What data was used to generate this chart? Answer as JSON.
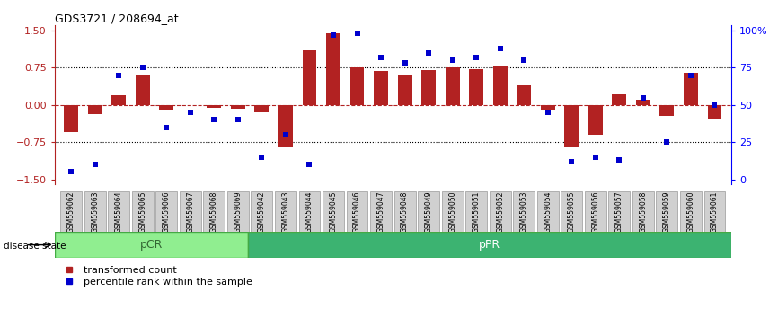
{
  "title": "GDS3721 / 208694_at",
  "samples": [
    "GSM559062",
    "GSM559063",
    "GSM559064",
    "GSM559065",
    "GSM559066",
    "GSM559067",
    "GSM559068",
    "GSM559069",
    "GSM559042",
    "GSM559043",
    "GSM559044",
    "GSM559045",
    "GSM559046",
    "GSM559047",
    "GSM559048",
    "GSM559049",
    "GSM559050",
    "GSM559051",
    "GSM559052",
    "GSM559053",
    "GSM559054",
    "GSM559055",
    "GSM559056",
    "GSM559057",
    "GSM559058",
    "GSM559059",
    "GSM559060",
    "GSM559061"
  ],
  "bar_values": [
    -0.55,
    -0.18,
    0.2,
    0.62,
    -0.12,
    0.0,
    -0.05,
    -0.08,
    -0.15,
    -0.85,
    1.1,
    1.45,
    0.75,
    0.68,
    0.62,
    0.7,
    0.75,
    0.72,
    0.8,
    0.4,
    -0.12,
    -0.85,
    -0.6,
    0.22,
    0.1,
    -0.22,
    0.65,
    -0.3
  ],
  "percentile_values": [
    5,
    10,
    70,
    75,
    35,
    45,
    40,
    40,
    15,
    30,
    10,
    97,
    98,
    82,
    78,
    85,
    80,
    82,
    88,
    80,
    45,
    12,
    15,
    13,
    55,
    25,
    70,
    50
  ],
  "pCR_count": 8,
  "pPR_count": 20,
  "bar_color": "#B22222",
  "percentile_color": "#0000CD",
  "pCR_color": "#90EE90",
  "pPR_color": "#3CB371",
  "background_color": "#FFFFFF",
  "ylim": [
    -1.6,
    1.6
  ],
  "yticks": [
    -1.5,
    -0.75,
    0,
    0.75,
    1.5
  ],
  "y2ticks_labels": [
    "100%",
    "75",
    "50",
    "25",
    "0"
  ],
  "y2ticks_vals": [
    1.5,
    0.75,
    0,
    -0.75,
    -1.5
  ],
  "hline_values": [
    0.75,
    0,
    -0.75
  ],
  "legend_labels": [
    "transformed count",
    "percentile rank within the sample"
  ]
}
